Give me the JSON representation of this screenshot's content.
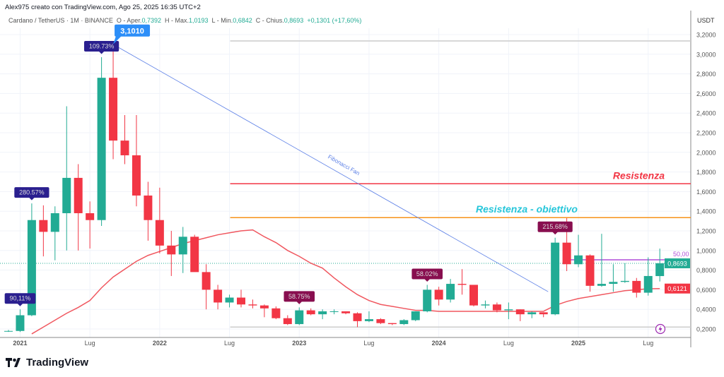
{
  "credit": "Alex975 creato con TradingView.com, Ago 25, 2025 16:35 UTC+2",
  "legend": {
    "symbol": "Cardano / TetherUS · 1M · BINANCE",
    "open_label": "O - Aper.",
    "open": "0,7392",
    "high_label": "H - Max.",
    "high": "1,0193",
    "low_label": "L - Min.",
    "low": "0,6842",
    "close_label": "C - Chius.",
    "close": "0,8693",
    "change": "+0,1301 (+17,60%)"
  },
  "logo": {
    "text": "TradingView"
  },
  "colors": {
    "up": "#22ab94",
    "down": "#f23645",
    "ma": "#f0575f",
    "fib": "#5b7fe6",
    "resistance": "#f23645",
    "target": "#f7931a",
    "badge_up": "#2a1f8f",
    "badge_down": "#880e4f",
    "target_text": "#26c6da",
    "mid": "#b04fd9"
  },
  "chart_data": {
    "type": "candlestick",
    "currency_label": "USDT",
    "ylim": [
      0.1,
      3.3
    ],
    "yticks": [
      "0,2000",
      "0,4000",
      "0,6000",
      "0,8000",
      "1,0000",
      "1,2000",
      "1,4000",
      "1,6000",
      "1,8000",
      "2,0000",
      "2,2000",
      "2,4000",
      "2,6000",
      "2,8000",
      "3,0000",
      "3,2000"
    ],
    "xticks": [
      {
        "label": "2021",
        "month": 1,
        "bold": true
      },
      {
        "label": "Lug",
        "month": 7
      },
      {
        "label": "2022",
        "month": 13,
        "bold": true
      },
      {
        "label": "Lug",
        "month": 19
      },
      {
        "label": "2023",
        "month": 25,
        "bold": true
      },
      {
        "label": "Lug",
        "month": 31
      },
      {
        "label": "2024",
        "month": 37,
        "bold": true
      },
      {
        "label": "Lug",
        "month": 43
      },
      {
        "label": "2025",
        "month": 49,
        "bold": true
      },
      {
        "label": "Lug",
        "month": 55
      }
    ],
    "first_month": "2020-12",
    "ohlc": [
      [
        0.18,
        0.19,
        0.17,
        0.18
      ],
      [
        0.18,
        0.4,
        0.17,
        0.34
      ],
      [
        0.34,
        1.48,
        0.33,
        1.31
      ],
      [
        1.31,
        1.46,
        0.94,
        1.19
      ],
      [
        1.19,
        1.45,
        0.9,
        1.38
      ],
      [
        1.38,
        2.47,
        1.0,
        1.74
      ],
      [
        1.74,
        1.88,
        1.0,
        1.38
      ],
      [
        1.38,
        1.5,
        1.02,
        1.31
      ],
      [
        1.31,
        2.97,
        1.25,
        2.76
      ],
      [
        2.76,
        3.1,
        1.93,
        2.12
      ],
      [
        2.12,
        2.38,
        1.88,
        1.97
      ],
      [
        1.97,
        2.38,
        1.45,
        1.56
      ],
      [
        1.56,
        1.7,
        1.1,
        1.31
      ],
      [
        1.31,
        1.64,
        0.97,
        1.05
      ],
      [
        1.05,
        1.2,
        0.74,
        0.96
      ],
      [
        0.96,
        1.24,
        0.77,
        1.14
      ],
      [
        1.14,
        1.16,
        0.79,
        0.78
      ],
      [
        0.78,
        0.86,
        0.4,
        0.6
      ],
      [
        0.6,
        0.65,
        0.4,
        0.47
      ],
      [
        0.47,
        0.55,
        0.42,
        0.52
      ],
      [
        0.52,
        0.6,
        0.42,
        0.45
      ],
      [
        0.45,
        0.5,
        0.41,
        0.44
      ],
      [
        0.44,
        0.45,
        0.32,
        0.41
      ],
      [
        0.41,
        0.43,
        0.3,
        0.31
      ],
      [
        0.31,
        0.34,
        0.24,
        0.25
      ],
      [
        0.25,
        0.42,
        0.24,
        0.39
      ],
      [
        0.39,
        0.41,
        0.34,
        0.35
      ],
      [
        0.35,
        0.4,
        0.3,
        0.38
      ],
      [
        0.38,
        0.4,
        0.35,
        0.38
      ],
      [
        0.38,
        0.38,
        0.35,
        0.36
      ],
      [
        0.36,
        0.37,
        0.22,
        0.28
      ],
      [
        0.28,
        0.38,
        0.27,
        0.3
      ],
      [
        0.3,
        0.31,
        0.25,
        0.26
      ],
      [
        0.26,
        0.26,
        0.24,
        0.25
      ],
      [
        0.25,
        0.3,
        0.24,
        0.29
      ],
      [
        0.29,
        0.38,
        0.28,
        0.38
      ],
      [
        0.38,
        0.65,
        0.37,
        0.6
      ],
      [
        0.6,
        0.63,
        0.44,
        0.5
      ],
      [
        0.5,
        0.71,
        0.47,
        0.66
      ],
      [
        0.66,
        0.81,
        0.55,
        0.65
      ],
      [
        0.65,
        0.65,
        0.43,
        0.44
      ],
      [
        0.44,
        0.49,
        0.41,
        0.45
      ],
      [
        0.45,
        0.47,
        0.37,
        0.39
      ],
      [
        0.39,
        0.47,
        0.3,
        0.4
      ],
      [
        0.4,
        0.4,
        0.28,
        0.35
      ],
      [
        0.35,
        0.38,
        0.31,
        0.37
      ],
      [
        0.37,
        0.37,
        0.32,
        0.35
      ],
      [
        0.35,
        1.13,
        0.34,
        1.08
      ],
      [
        1.08,
        1.33,
        0.79,
        0.86
      ],
      [
        0.86,
        1.16,
        0.83,
        0.95
      ],
      [
        0.95,
        0.96,
        0.58,
        0.64
      ],
      [
        0.64,
        1.17,
        0.63,
        0.66
      ],
      [
        0.66,
        0.86,
        0.58,
        0.68
      ],
      [
        0.68,
        0.87,
        0.67,
        0.69
      ],
      [
        0.69,
        0.72,
        0.52,
        0.57
      ],
      [
        0.57,
        0.93,
        0.54,
        0.74
      ],
      [
        0.7392,
        1.0193,
        0.6842,
        0.8693
      ]
    ],
    "ma": [
      null,
      null,
      0.15,
      0.22,
      0.29,
      0.36,
      0.42,
      0.49,
      0.62,
      0.73,
      0.81,
      0.89,
      0.95,
      0.99,
      1.03,
      1.07,
      1.1,
      1.13,
      1.16,
      1.18,
      1.2,
      1.21,
      1.14,
      1.08,
      1.0,
      0.94,
      0.87,
      0.82,
      0.72,
      0.63,
      0.55,
      0.49,
      0.45,
      0.43,
      0.41,
      0.39,
      0.39,
      0.38,
      0.38,
      0.38,
      0.38,
      0.38,
      0.38,
      0.38,
      0.38,
      0.38,
      0.38,
      0.44,
      0.48,
      0.51,
      0.53,
      0.55,
      0.57,
      0.59,
      0.6,
      0.61,
      0.6121
    ],
    "percent_badges": [
      {
        "month": 1,
        "text": "90,11%",
        "kind": "up"
      },
      {
        "month": 2,
        "text": "280.57%",
        "kind": "up"
      },
      {
        "month": 8,
        "text": "109.73%",
        "kind": "up"
      },
      {
        "month": 25,
        "text": "58.75%",
        "kind": "down"
      },
      {
        "month": 36,
        "text": "58.02%",
        "kind": "down"
      },
      {
        "month": 47,
        "text": "215.68%",
        "kind": "down"
      }
    ],
    "high_callout": {
      "month": 9,
      "value": 3.101,
      "text": "3,1010"
    },
    "fibonacci_fan": {
      "label": "Fibonacci Fan",
      "from": {
        "month": 9,
        "value": 3.1
      },
      "to": {
        "month": 46.4,
        "value": 0.58
      }
    },
    "levels": [
      {
        "name": "resistance",
        "value": 1.68,
        "label": "Resistenza",
        "from_month": 19
      },
      {
        "name": "target",
        "value": 1.335,
        "label": "Resistenza - obiettivo",
        "from_month": 19
      },
      {
        "name": "top-gray",
        "value": 3.135,
        "from_month": 19
      },
      {
        "name": "bottom-gray",
        "value": 0.22,
        "from_month": 19
      },
      {
        "name": "mid",
        "value": 0.905,
        "label": "50,00",
        "from_month": 48
      }
    ],
    "last_price": {
      "value": 0.8693,
      "text": "0,8693"
    },
    "ma_last": {
      "value": 0.6121,
      "text": "0,6121"
    }
  }
}
